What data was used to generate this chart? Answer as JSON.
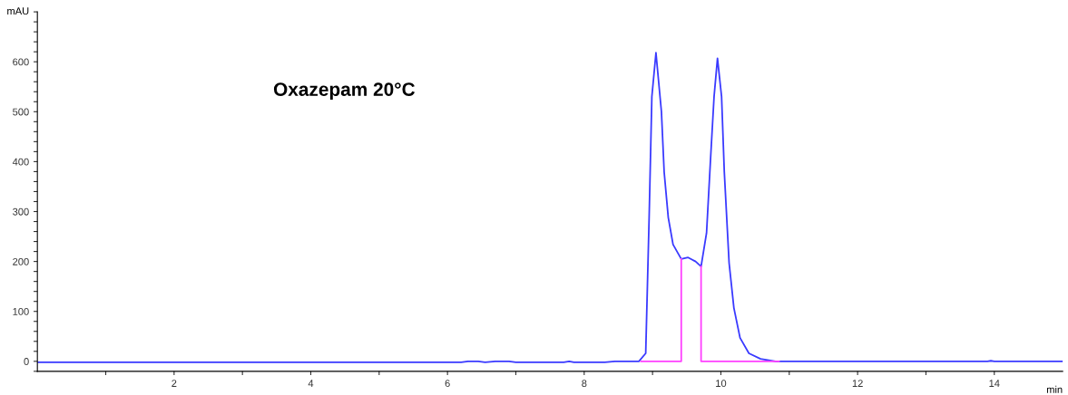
{
  "chart_data": {
    "type": "line",
    "annotations": [
      "Oxazepam 20°C"
    ],
    "xlabel": "min",
    "ylabel": "mAU",
    "xlim": [
      0,
      15
    ],
    "ylim": [
      -20,
      700
    ],
    "xticks": [
      {
        "value": 1,
        "label": null
      },
      2,
      {
        "value": 3,
        "label": null
      },
      4,
      {
        "value": 5,
        "label": null
      },
      6,
      {
        "value": 7,
        "label": null
      },
      8,
      {
        "value": 9,
        "label": null
      },
      10,
      {
        "value": 11,
        "label": null
      },
      12,
      {
        "value": 13,
        "label": null
      },
      14
    ],
    "yticks": [
      {
        "value": -20,
        "label": null
      },
      0,
      {
        "value": 20,
        "label": null
      },
      {
        "value": 40,
        "label": null
      },
      {
        "value": 60,
        "label": null
      },
      {
        "value": 80,
        "label": null
      },
      100,
      {
        "value": 120,
        "label": null
      },
      {
        "value": 140,
        "label": null
      },
      {
        "value": 160,
        "label": null
      },
      {
        "value": 180,
        "label": null
      },
      200,
      {
        "value": 220,
        "label": null
      },
      {
        "value": 240,
        "label": null
      },
      {
        "value": 260,
        "label": null
      },
      {
        "value": 280,
        "label": null
      },
      300,
      {
        "value": 320,
        "label": null
      },
      {
        "value": 340,
        "label": null
      },
      {
        "value": 360,
        "label": null
      },
      {
        "value": 380,
        "label": null
      },
      400,
      {
        "value": 420,
        "label": null
      },
      {
        "value": 440,
        "label": null
      },
      {
        "value": 460,
        "label": null
      },
      {
        "value": 480,
        "label": null
      },
      500,
      {
        "value": 520,
        "label": null
      },
      {
        "value": 540,
        "label": null
      },
      {
        "value": 560,
        "label": null
      },
      {
        "value": 580,
        "label": null
      },
      600,
      {
        "value": 620,
        "label": null
      },
      {
        "value": 640,
        "label": null
      },
      {
        "value": 660,
        "label": null
      },
      {
        "value": 680,
        "label": null
      },
      {
        "value": 700,
        "label": null
      }
    ],
    "grid": false,
    "legend": false,
    "marker": "none",
    "line_style": "solid",
    "series": [
      {
        "color": "#3a3aff",
        "x": [
          0,
          6.2,
          6.3,
          6.45,
          6.55,
          6.7,
          6.9,
          7.0,
          7.7,
          7.78,
          7.85,
          8.3,
          8.45,
          8.8,
          8.9,
          8.95,
          8.99,
          9.05,
          9.13,
          9.17,
          9.23,
          9.3,
          9.42,
          9.52,
          9.63,
          9.71,
          9.79,
          9.85,
          9.9,
          9.95,
          10.01,
          10.05,
          10.12,
          10.19,
          10.28,
          10.41,
          10.58,
          10.8,
          13.9,
          13.95,
          14.0,
          15
        ],
        "values": [
          -2,
          -2,
          0,
          0,
          -2,
          0,
          0,
          -2,
          -2,
          0,
          -2,
          -2,
          0,
          0,
          16,
          288,
          530,
          618,
          500,
          379,
          288,
          234,
          205,
          208,
          200,
          190,
          257,
          409,
          530,
          607,
          530,
          379,
          197,
          107,
          47,
          16,
          5,
          0,
          0,
          1,
          0,
          0
        ]
      },
      {
        "color": "#ff40ff",
        "x": [
          8.83,
          9.42,
          9.42,
          9.5,
          9.71,
          9.71,
          10.85
        ],
        "values": [
          0,
          0,
          205,
          null,
          190,
          0,
          0
        ]
      }
    ]
  }
}
